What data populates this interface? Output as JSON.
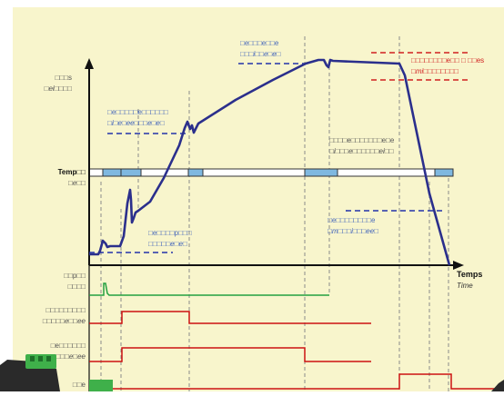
{
  "axes": {
    "x_label": "Temps",
    "x_label_italic": "Time",
    "y_label_top": "□□□s",
    "y_label_top_italic": "□ei□□□□"
  },
  "band": {
    "label": "Temp□□",
    "label_italic": "□e□□"
  },
  "annotations": [
    {
      "line1": "□e□□□e□□e",
      "line2": "□□□i□□e□e□"
    },
    {
      "line1": "□e□□□□□e□□□□□□",
      "line2": "□i□e□ee□□□e□e□"
    },
    {
      "line1": "□□□□e□□□□□□□e□e",
      "line2": "□i□□□e□□□□□□ei□□"
    },
    {
      "line1": "□e□□□□p□□□",
      "line2": "□□□□□e□e□"
    },
    {
      "line1": "□e□□□□□□□□e",
      "line2": "□m□□□i□□□ee□"
    },
    {
      "line1": "□□□□□□□□e□□ □ □□es",
      "line2": "□mi□□□□□□□□"
    }
  ],
  "signals": [
    {
      "line1": "□□p□□",
      "line2": "□□□□"
    },
    {
      "line1": "□□□□□□□□□",
      "line2": "□□□□□e□□ee"
    },
    {
      "line1": "□e□□□□□□",
      "line2": "□□□□□e□ee"
    },
    {
      "line1": "□□e",
      "line2": ""
    }
  ],
  "colors": {
    "background": "#f8f5cc",
    "axis": "#111111",
    "curve": "#2b2f8c",
    "threshold_blue": "#2233aa",
    "threshold_red": "#d02020",
    "signal_green": "#22a040",
    "signal_red": "#cc1111",
    "band_fill": "#7fb8e0",
    "guide_gray": "#8a8a8a"
  }
}
